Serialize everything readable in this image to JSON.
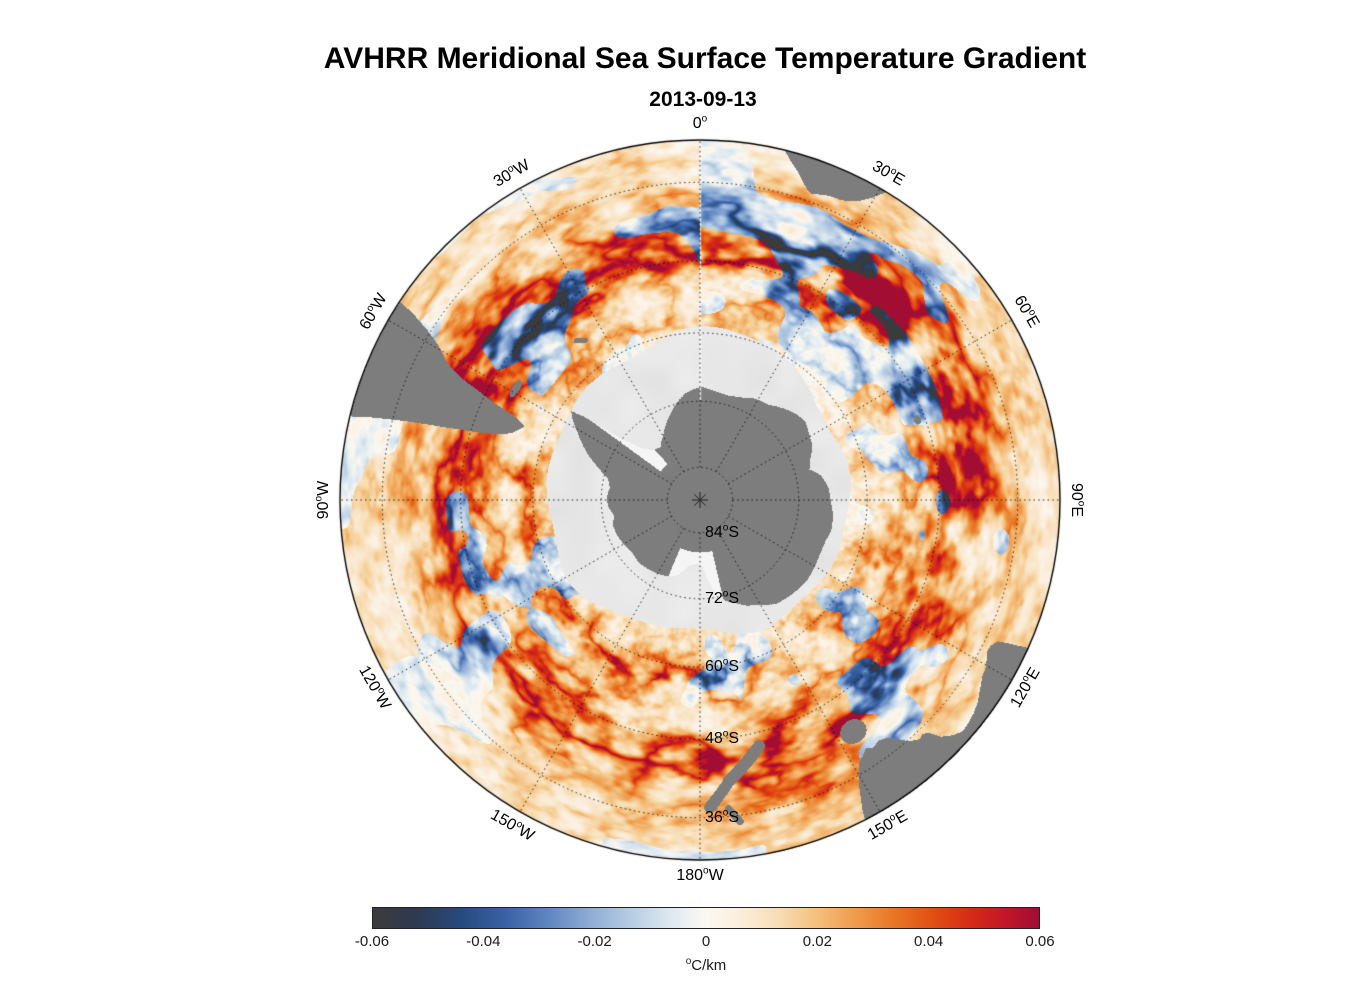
{
  "page": {
    "background": "#ffffff"
  },
  "chart_data": {
    "type": "heatmap",
    "projection": {
      "name": "south-polar-stereographic",
      "center": "South Pole",
      "edge_latitude_deg": -30
    },
    "title": "AVHRR Meridional Sea Surface Temperature Gradient",
    "subtitle": "2013-09-13",
    "field": "meridional sea surface temperature gradient",
    "units": "°C/km",
    "colorbar": {
      "label": "°C/km",
      "min": -0.06,
      "max": 0.06,
      "tick_labels": [
        "-0.06",
        "-0.04",
        "-0.02",
        "0",
        "0.02",
        "0.04",
        "0.06"
      ]
    },
    "colormap": [
      {
        "v": -0.06,
        "c": "#3b3b3b"
      },
      {
        "v": -0.052,
        "c": "#2e3a52"
      },
      {
        "v": -0.044,
        "c": "#274a7e"
      },
      {
        "v": -0.036,
        "c": "#3a62a5"
      },
      {
        "v": -0.028,
        "c": "#6288c2"
      },
      {
        "v": -0.02,
        "c": "#93b0d7"
      },
      {
        "v": -0.012,
        "c": "#bfd3e6"
      },
      {
        "v": -0.005,
        "c": "#e4edf2"
      },
      {
        "v": 0.0,
        "c": "#fbf8f0"
      },
      {
        "v": 0.006,
        "c": "#fbeedd"
      },
      {
        "v": 0.013,
        "c": "#f8ddb4"
      },
      {
        "v": 0.02,
        "c": "#f4bf7d"
      },
      {
        "v": 0.027,
        "c": "#ef9b4b"
      },
      {
        "v": 0.034,
        "c": "#e97524"
      },
      {
        "v": 0.041,
        "c": "#e14e13"
      },
      {
        "v": 0.048,
        "c": "#d52a16"
      },
      {
        "v": 0.054,
        "c": "#c21729"
      },
      {
        "v": 0.06,
        "c": "#a10d33"
      }
    ],
    "graticule": {
      "meridians": [
        {
          "deg": 0,
          "label": "0°"
        },
        {
          "deg": 30,
          "label": "30°E"
        },
        {
          "deg": 60,
          "label": "60°E"
        },
        {
          "deg": 90,
          "label": "90°E"
        },
        {
          "deg": 120,
          "label": "120°E"
        },
        {
          "deg": 150,
          "label": "150°E"
        },
        {
          "deg": 180,
          "label": "180°W"
        },
        {
          "deg": 210,
          "label": "150°W"
        },
        {
          "deg": 240,
          "label": "120°W"
        },
        {
          "deg": 270,
          "label": "90°W"
        },
        {
          "deg": 300,
          "label": "60°W"
        },
        {
          "deg": 330,
          "label": "30°W"
        }
      ],
      "parallels": [
        {
          "deg": -36,
          "label": "36°S"
        },
        {
          "deg": -48,
          "label": "48°S"
        },
        {
          "deg": -60,
          "label": "60°S"
        },
        {
          "deg": -72,
          "label": "72°S"
        },
        {
          "deg": -84,
          "label": "84°S"
        }
      ]
    },
    "land_color": "#7d7d7d",
    "sea_ice_color": "#e7e7e7",
    "ice_shelf_color": "#f5f5f5",
    "features": [
      "Antarctica",
      "sea ice",
      "Ross Ice Shelf",
      "Ronne Ice Shelf",
      "South America",
      "Falkland Islands",
      "South Georgia",
      "Africa",
      "Kerguelen",
      "Australia",
      "Tasmania",
      "New Zealand"
    ]
  }
}
